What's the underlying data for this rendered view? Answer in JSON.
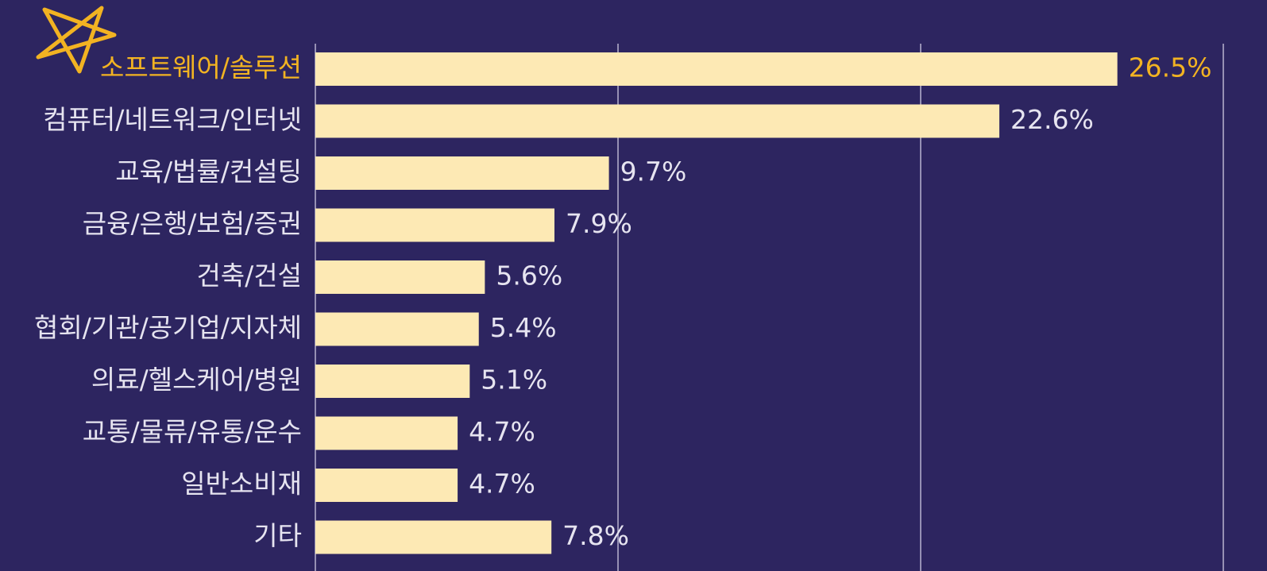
{
  "chart_data": {
    "type": "hbar",
    "categories": [
      "소프트웨어/솔루션",
      "컴퓨터/네트워크/인터넷",
      "교육/법률/컨설팅",
      "금융/은행/보험/증권",
      "건축/건설",
      "협회/기관/공기업/지자체",
      "의료/헬스케어/병원",
      "교통/물류/유통/운수",
      "일반소비재",
      "기타"
    ],
    "values": [
      26.5,
      22.6,
      9.7,
      7.9,
      5.6,
      5.4,
      5.1,
      4.7,
      4.7,
      7.8
    ],
    "value_labels": [
      "26.5%",
      "22.6%",
      "9.7%",
      "7.9%",
      "5.6%",
      "5.4%",
      "5.1%",
      "4.7%",
      "4.7%",
      "7.8%"
    ],
    "color": "#fde9b4",
    "text_color": "#e6e4f0",
    "highlight": {
      "index": 0,
      "color": "#f2b322"
    },
    "xlim": [
      0,
      30
    ],
    "xticks": [
      0,
      10,
      20,
      30
    ],
    "grid": true
  }
}
